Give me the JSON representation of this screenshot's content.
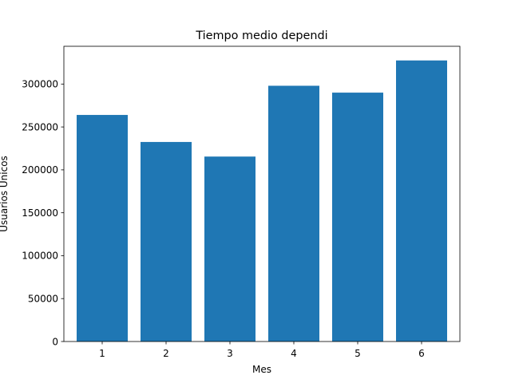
{
  "chart_data": {
    "type": "bar",
    "title": "Tiempo medio dependi",
    "xlabel": "Mes",
    "ylabel": "Usuarios Únicos",
    "categories": [
      "1",
      "2",
      "3",
      "4",
      "5",
      "6"
    ],
    "values": [
      264000,
      232500,
      215500,
      298000,
      290000,
      327500
    ],
    "ylim": [
      0,
      344000
    ],
    "yticks": [
      0,
      50000,
      100000,
      150000,
      200000,
      250000,
      300000
    ],
    "ytick_labels": [
      "0",
      "50000",
      "100000",
      "150000",
      "200000",
      "250000",
      "300000"
    ],
    "bar_color": "#1f77b4",
    "grid": false,
    "legend": "none"
  }
}
